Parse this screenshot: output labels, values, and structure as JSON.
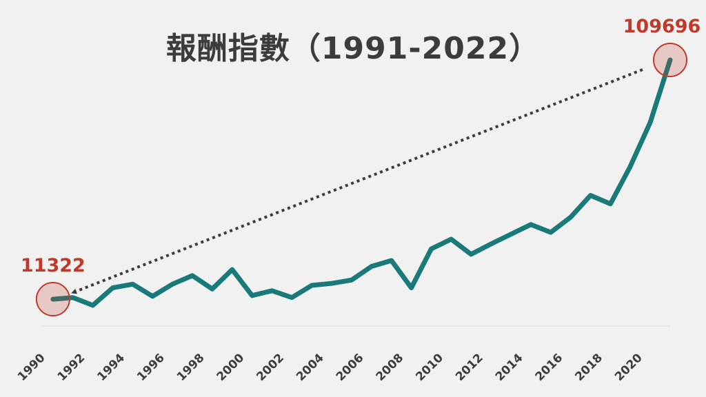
{
  "chart_data": {
    "type": "line",
    "title": "報酬指數（1991-2022）",
    "x": [
      1991,
      1992,
      1993,
      1994,
      1995,
      1996,
      1997,
      1998,
      1999,
      2000,
      2001,
      2002,
      2003,
      2004,
      2005,
      2006,
      2007,
      2008,
      2009,
      2010,
      2011,
      2012,
      2013,
      2014,
      2015,
      2016,
      2017,
      2018,
      2019,
      2020,
      2021,
      2022
    ],
    "series": [
      {
        "values": [
          11322,
          12000,
          8800,
          16000,
          17500,
          12500,
          17500,
          21000,
          15500,
          23500,
          12800,
          14800,
          12000,
          17000,
          17800,
          19200,
          24800,
          27200,
          16000,
          32000,
          36000,
          29800,
          34000,
          38000,
          42000,
          38800,
          45000,
          54000,
          50500,
          66000,
          84000,
          109696
        ]
      }
    ],
    "xticks": [
      "1990",
      "1992",
      "1994",
      "1996",
      "1998",
      "2000",
      "2002",
      "2004",
      "2006",
      "2008",
      "2010",
      "2012",
      "2014",
      "2016",
      "2018",
      "2020"
    ],
    "annotations": [
      {
        "label": "11322",
        "x": 1991,
        "value": 11322
      },
      {
        "label": "109696",
        "x": 2022,
        "value": 109696
      }
    ],
    "ylim": [
      0,
      125000
    ],
    "grid": false,
    "colors": {
      "line": "#1a7a7a",
      "annotation": "#c0392b",
      "arrow": "#3c3c3c"
    }
  }
}
